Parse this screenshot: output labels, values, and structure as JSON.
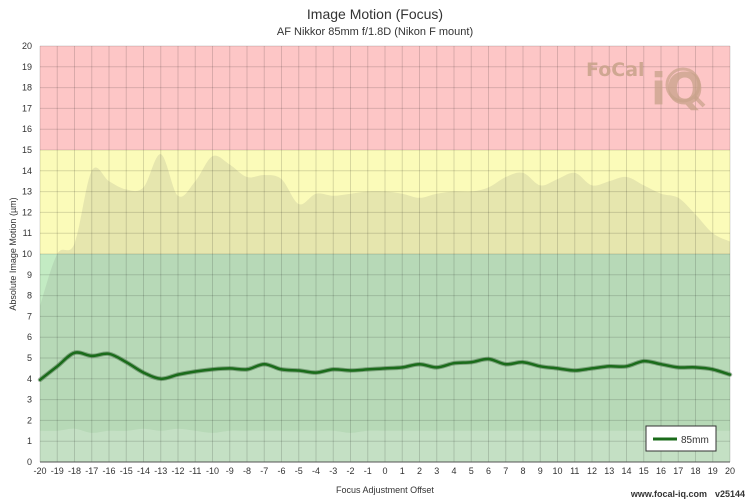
{
  "chart_data": {
    "type": "area",
    "title": "Image Motion (Focus)",
    "subtitle": "AF Nikkor 85mm f/1.8D (Nikon F mount)",
    "xlabel": "Focus Adjustment Offset",
    "ylabel": "Absolute Image Motion (µm)",
    "xlim": [
      -20,
      20
    ],
    "ylim": [
      0,
      20
    ],
    "x_ticks": [
      -20,
      -19,
      -18,
      -17,
      -16,
      -15,
      -14,
      -13,
      -12,
      -11,
      -10,
      -9,
      -8,
      -7,
      -6,
      -5,
      -4,
      -3,
      -2,
      -1,
      0,
      1,
      2,
      3,
      4,
      5,
      6,
      7,
      8,
      9,
      10,
      11,
      12,
      13,
      14,
      15,
      16,
      17,
      18,
      19,
      20
    ],
    "y_ticks": [
      0,
      1,
      2,
      3,
      4,
      5,
      6,
      7,
      8,
      9,
      10,
      11,
      12,
      13,
      14,
      15,
      16,
      17,
      18,
      19,
      20
    ],
    "grid": true,
    "legend_position": "bottom-right",
    "bands": [
      {
        "from": 0,
        "to": 10,
        "color": "#c3ebc3"
      },
      {
        "from": 10,
        "to": 15,
        "color": "#fbfbb9"
      },
      {
        "from": 15,
        "to": 20,
        "color": "#fdc6c6"
      }
    ],
    "series": [
      {
        "name": "85mm",
        "color": "#1a6b1a",
        "x": [
          -20,
          -19,
          -18,
          -17,
          -16,
          -15,
          -14,
          -13,
          -12,
          -11,
          -10,
          -9,
          -8,
          -7,
          -6,
          -5,
          -4,
          -3,
          -2,
          -1,
          0,
          1,
          2,
          3,
          4,
          5,
          6,
          7,
          8,
          9,
          10,
          11,
          12,
          13,
          14,
          15,
          16,
          17,
          18,
          19,
          20
        ],
        "values": [
          3.95,
          4.6,
          5.25,
          5.1,
          5.2,
          4.8,
          4.3,
          4.0,
          4.2,
          4.35,
          4.45,
          4.5,
          4.45,
          4.7,
          4.45,
          4.4,
          4.3,
          4.45,
          4.4,
          4.45,
          4.5,
          4.55,
          4.7,
          4.55,
          4.75,
          4.8,
          4.95,
          4.7,
          4.8,
          4.6,
          4.5,
          4.4,
          4.5,
          4.6,
          4.6,
          4.85,
          4.7,
          4.55,
          4.55,
          4.45,
          4.2
        ],
        "range_upper": [
          7.5,
          10.0,
          10.5,
          14.0,
          13.5,
          13.1,
          13.2,
          14.8,
          12.8,
          13.5,
          14.7,
          14.3,
          13.7,
          13.8,
          13.6,
          12.4,
          12.9,
          12.8,
          12.9,
          13.0,
          13.0,
          12.9,
          12.7,
          12.9,
          13.0,
          13.0,
          13.2,
          13.7,
          13.9,
          13.3,
          13.6,
          13.9,
          13.3,
          13.5,
          13.7,
          13.3,
          12.9,
          12.7,
          11.9,
          11.0,
          10.6
        ],
        "range_lower": [
          1.5,
          1.5,
          1.6,
          1.4,
          1.5,
          1.5,
          1.6,
          1.5,
          1.6,
          1.5,
          1.4,
          1.5,
          1.5,
          1.5,
          1.5,
          1.5,
          1.5,
          1.5,
          1.4,
          1.5,
          1.5,
          1.5,
          1.5,
          1.5,
          1.5,
          1.5,
          1.5,
          1.5,
          1.5,
          1.5,
          1.5,
          1.5,
          1.5,
          1.5,
          1.5,
          1.5,
          1.5,
          1.5,
          1.5,
          1.5,
          1.5
        ]
      }
    ]
  },
  "logo": {
    "text_left": "FoCal",
    "text_right": "iQ"
  },
  "footer": {
    "url": "www.focal-iq.com",
    "version": "v25144"
  }
}
